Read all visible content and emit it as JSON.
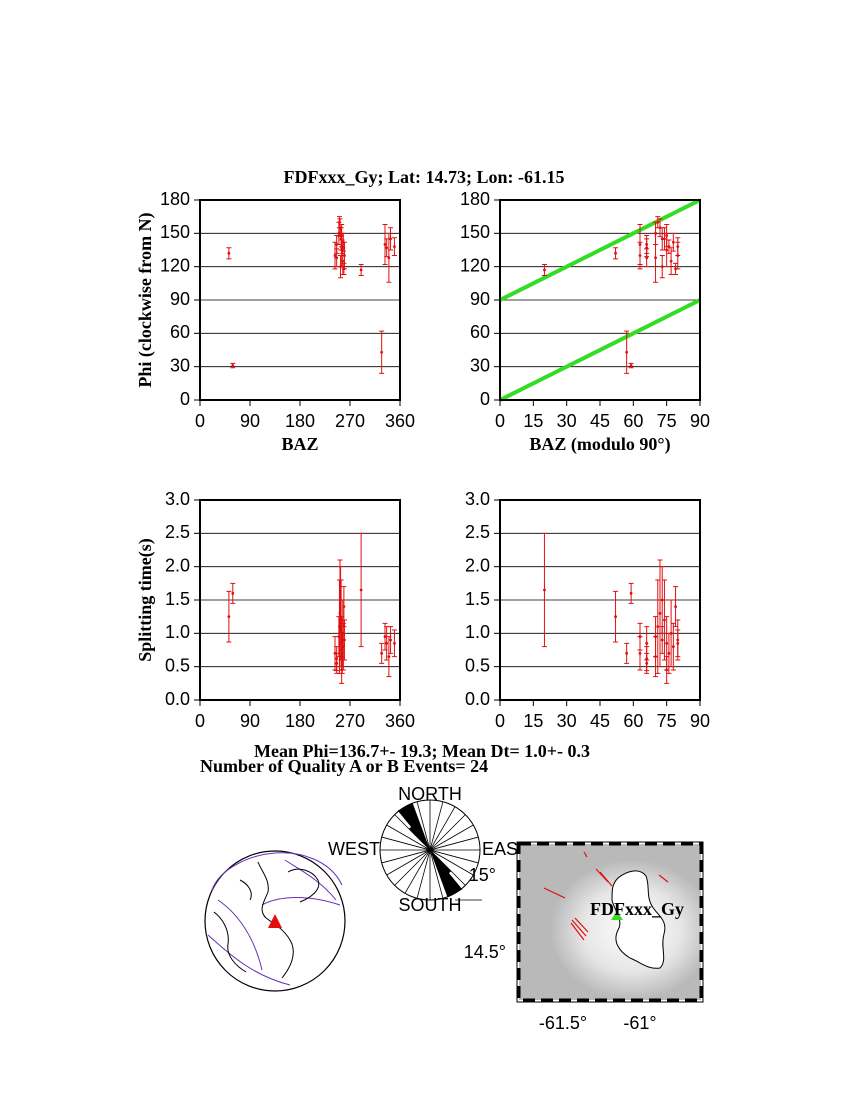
{
  "title": "FDFxxx_Gy; Lat:  14.73;  Lon:  -61.15",
  "chart_data": [
    {
      "type": "errorbar",
      "color": "#e01010",
      "xlabel": "BAZ",
      "ylabel": "Phi (clockwise from N)",
      "xlim": [
        0,
        360
      ],
      "ylim": [
        0,
        180
      ],
      "xticks": [
        0,
        90,
        180,
        270,
        360
      ],
      "yticks": [
        0,
        30,
        60,
        90,
        120,
        150,
        180
      ],
      "grid": true,
      "x": [
        52,
        59,
        243,
        246,
        250,
        252,
        253,
        254,
        255,
        256,
        257,
        258,
        259,
        260,
        290,
        327,
        333,
        336,
        340,
        343,
        350,
        246,
        251,
        255
      ],
      "values": [
        132,
        31,
        130,
        140,
        150,
        155,
        120,
        145,
        135,
        138,
        125,
        142,
        118,
        130,
        117,
        43,
        140,
        137,
        128,
        145,
        138,
        128,
        160,
        148
      ],
      "errors": [
        5,
        2,
        12,
        8,
        10,
        8,
        10,
        10,
        15,
        6,
        12,
        8,
        5,
        12,
        5,
        19,
        18,
        8,
        22,
        10,
        8,
        8,
        5,
        10
      ]
    },
    {
      "type": "errorbar",
      "color": "#e01010",
      "xlabel": "BAZ (modulo 90°)",
      "xlim": [
        0,
        90
      ],
      "ylim": [
        0,
        180
      ],
      "xticks": [
        0,
        15,
        30,
        45,
        60,
        75,
        90
      ],
      "yticks": [
        0,
        30,
        60,
        90,
        120,
        150,
        180
      ],
      "grid": true,
      "x": [
        52,
        59,
        63,
        66,
        70,
        72,
        73,
        74,
        75,
        76,
        77,
        78,
        79,
        80,
        20,
        57,
        63,
        66,
        70,
        73,
        80,
        66,
        71,
        75
      ],
      "values": [
        132,
        31,
        130,
        140,
        150,
        155,
        120,
        145,
        135,
        138,
        125,
        142,
        118,
        130,
        117,
        43,
        140,
        137,
        128,
        145,
        138,
        128,
        160,
        148
      ],
      "errors": [
        5,
        2,
        12,
        8,
        10,
        8,
        10,
        10,
        15,
        6,
        12,
        8,
        5,
        12,
        5,
        19,
        18,
        8,
        22,
        10,
        8,
        8,
        5,
        10
      ],
      "line_color": "#33dd22",
      "lines": [
        {
          "x": [
            0,
            90
          ],
          "y": [
            90,
            180
          ]
        },
        {
          "x": [
            0,
            90
          ],
          "y": [
            0,
            90
          ]
        }
      ]
    },
    {
      "type": "errorbar",
      "color": "#e01010",
      "ylabel": "Splitting time(s)",
      "xlim": [
        0,
        360
      ],
      "ylim": [
        0,
        3
      ],
      "xticks": [
        0,
        90,
        180,
        270,
        360
      ],
      "yticks": [
        {
          "value": 0,
          "label": "0.0"
        },
        0.5,
        {
          "value": 1,
          "label": "1.0"
        },
        1.5,
        {
          "value": 2,
          "label": "2.0"
        },
        2.5,
        {
          "value": 3,
          "label": "3.0"
        }
      ],
      "grid": true,
      "x": [
        52,
        59,
        243,
        246,
        250,
        252,
        253,
        254,
        255,
        256,
        257,
        258,
        259,
        260,
        290,
        327,
        333,
        336,
        340,
        343,
        350,
        246,
        251,
        255
      ],
      "values": [
        1.25,
        1.6,
        0.7,
        0.55,
        0.95,
        1.3,
        1.5,
        1.2,
        0.85,
        0.7,
        1.0,
        0.8,
        1.4,
        0.9,
        1.65,
        0.7,
        0.95,
        0.85,
        0.65,
        0.9,
        0.85,
        0.62,
        1.1,
        0.45
      ],
      "errors": [
        0.38,
        0.15,
        0.25,
        0.15,
        0.3,
        0.8,
        0.5,
        0.6,
        0.4,
        0.3,
        0.5,
        0.35,
        0.3,
        0.3,
        0.85,
        0.15,
        0.2,
        0.25,
        0.3,
        0.2,
        0.2,
        0.18,
        0.7,
        0.2
      ]
    },
    {
      "type": "errorbar",
      "color": "#e01010",
      "xlim": [
        0,
        90
      ],
      "ylim": [
        0,
        3
      ],
      "xticks": [
        0,
        15,
        30,
        45,
        60,
        75,
        90
      ],
      "yticks": [
        {
          "value": 0,
          "label": "0.0"
        },
        0.5,
        {
          "value": 1,
          "label": "1.0"
        },
        1.5,
        {
          "value": 2,
          "label": "2.0"
        },
        2.5,
        {
          "value": 3,
          "label": "3.0"
        }
      ],
      "grid": true,
      "x": [
        52,
        59,
        63,
        66,
        70,
        72,
        73,
        74,
        75,
        76,
        77,
        78,
        79,
        80,
        20,
        57,
        63,
        66,
        70,
        73,
        80,
        66,
        71,
        75
      ],
      "values": [
        1.25,
        1.6,
        0.7,
        0.55,
        0.95,
        1.3,
        1.5,
        1.2,
        0.85,
        0.7,
        1.0,
        0.8,
        1.4,
        0.9,
        1.65,
        0.7,
        0.95,
        0.85,
        0.65,
        0.9,
        0.85,
        0.62,
        1.1,
        0.45
      ],
      "errors": [
        0.38,
        0.15,
        0.25,
        0.15,
        0.3,
        0.8,
        0.5,
        0.6,
        0.4,
        0.3,
        0.5,
        0.35,
        0.3,
        0.3,
        0.85,
        0.15,
        0.2,
        0.25,
        0.3,
        0.2,
        0.2,
        0.18,
        0.7,
        0.2
      ]
    }
  ],
  "summary": {
    "mean_line": "Mean Phi=136.7+- 19.3; Mean Dt=  1.0+-  0.3",
    "count_line": "Number of Quality A or B Events= 24"
  },
  "rose": {
    "north": "NORTH",
    "south": "SOUTH",
    "east": "EAST",
    "west": "WEST"
  },
  "map": {
    "station": "FDFxxx_Gy",
    "lat_labels": [
      "15°",
      "14.5°"
    ],
    "lon_labels": [
      "-61.5°",
      "-61°"
    ]
  }
}
